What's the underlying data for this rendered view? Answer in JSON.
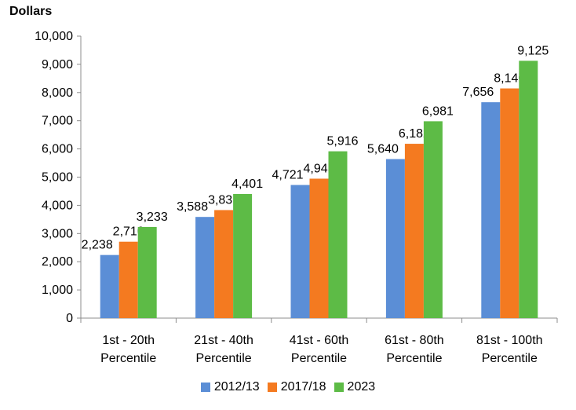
{
  "chart_data": {
    "type": "bar",
    "ylabel": "Dollars",
    "xlabel": "",
    "ylim": [
      0,
      10000
    ],
    "yticks": [
      0,
      1000,
      2000,
      3000,
      4000,
      5000,
      6000,
      7000,
      8000,
      9000,
      10000
    ],
    "ytick_labels": [
      "0",
      "1,000",
      "2,000",
      "3,000",
      "4,000",
      "5,000",
      "6,000",
      "7,000",
      "8,000",
      "9,000",
      "10,000"
    ],
    "categories": [
      [
        "1st - 20th",
        "Percentile"
      ],
      [
        "21st - 40th",
        "Percentile"
      ],
      [
        "41st - 60th",
        "Percentile"
      ],
      [
        "61st - 80th",
        "Percentile"
      ],
      [
        "81st - 100th",
        "Percentile"
      ]
    ],
    "series": [
      {
        "name": "2012/13",
        "color": "#5b8ed6",
        "values": [
          2238,
          3588,
          4721,
          5640,
          7656
        ],
        "labels": [
          "2,238",
          "3,588",
          "4,721",
          "5,640",
          "7,656"
        ]
      },
      {
        "name": "2017/18",
        "color": "#f47a20",
        "values": [
          2710,
          3831,
          4945,
          6182,
          8146
        ],
        "labels": [
          "2,710",
          "3,831",
          "4,945",
          "6,182",
          "8,146"
        ]
      },
      {
        "name": "2023",
        "color": "#5dbb46",
        "values": [
          3233,
          4401,
          5916,
          6981,
          9125
        ],
        "labels": [
          "3,233",
          "4,401",
          "5,916",
          "6,981",
          "9,125"
        ]
      }
    ],
    "grid": false,
    "legend_position": "bottom"
  }
}
